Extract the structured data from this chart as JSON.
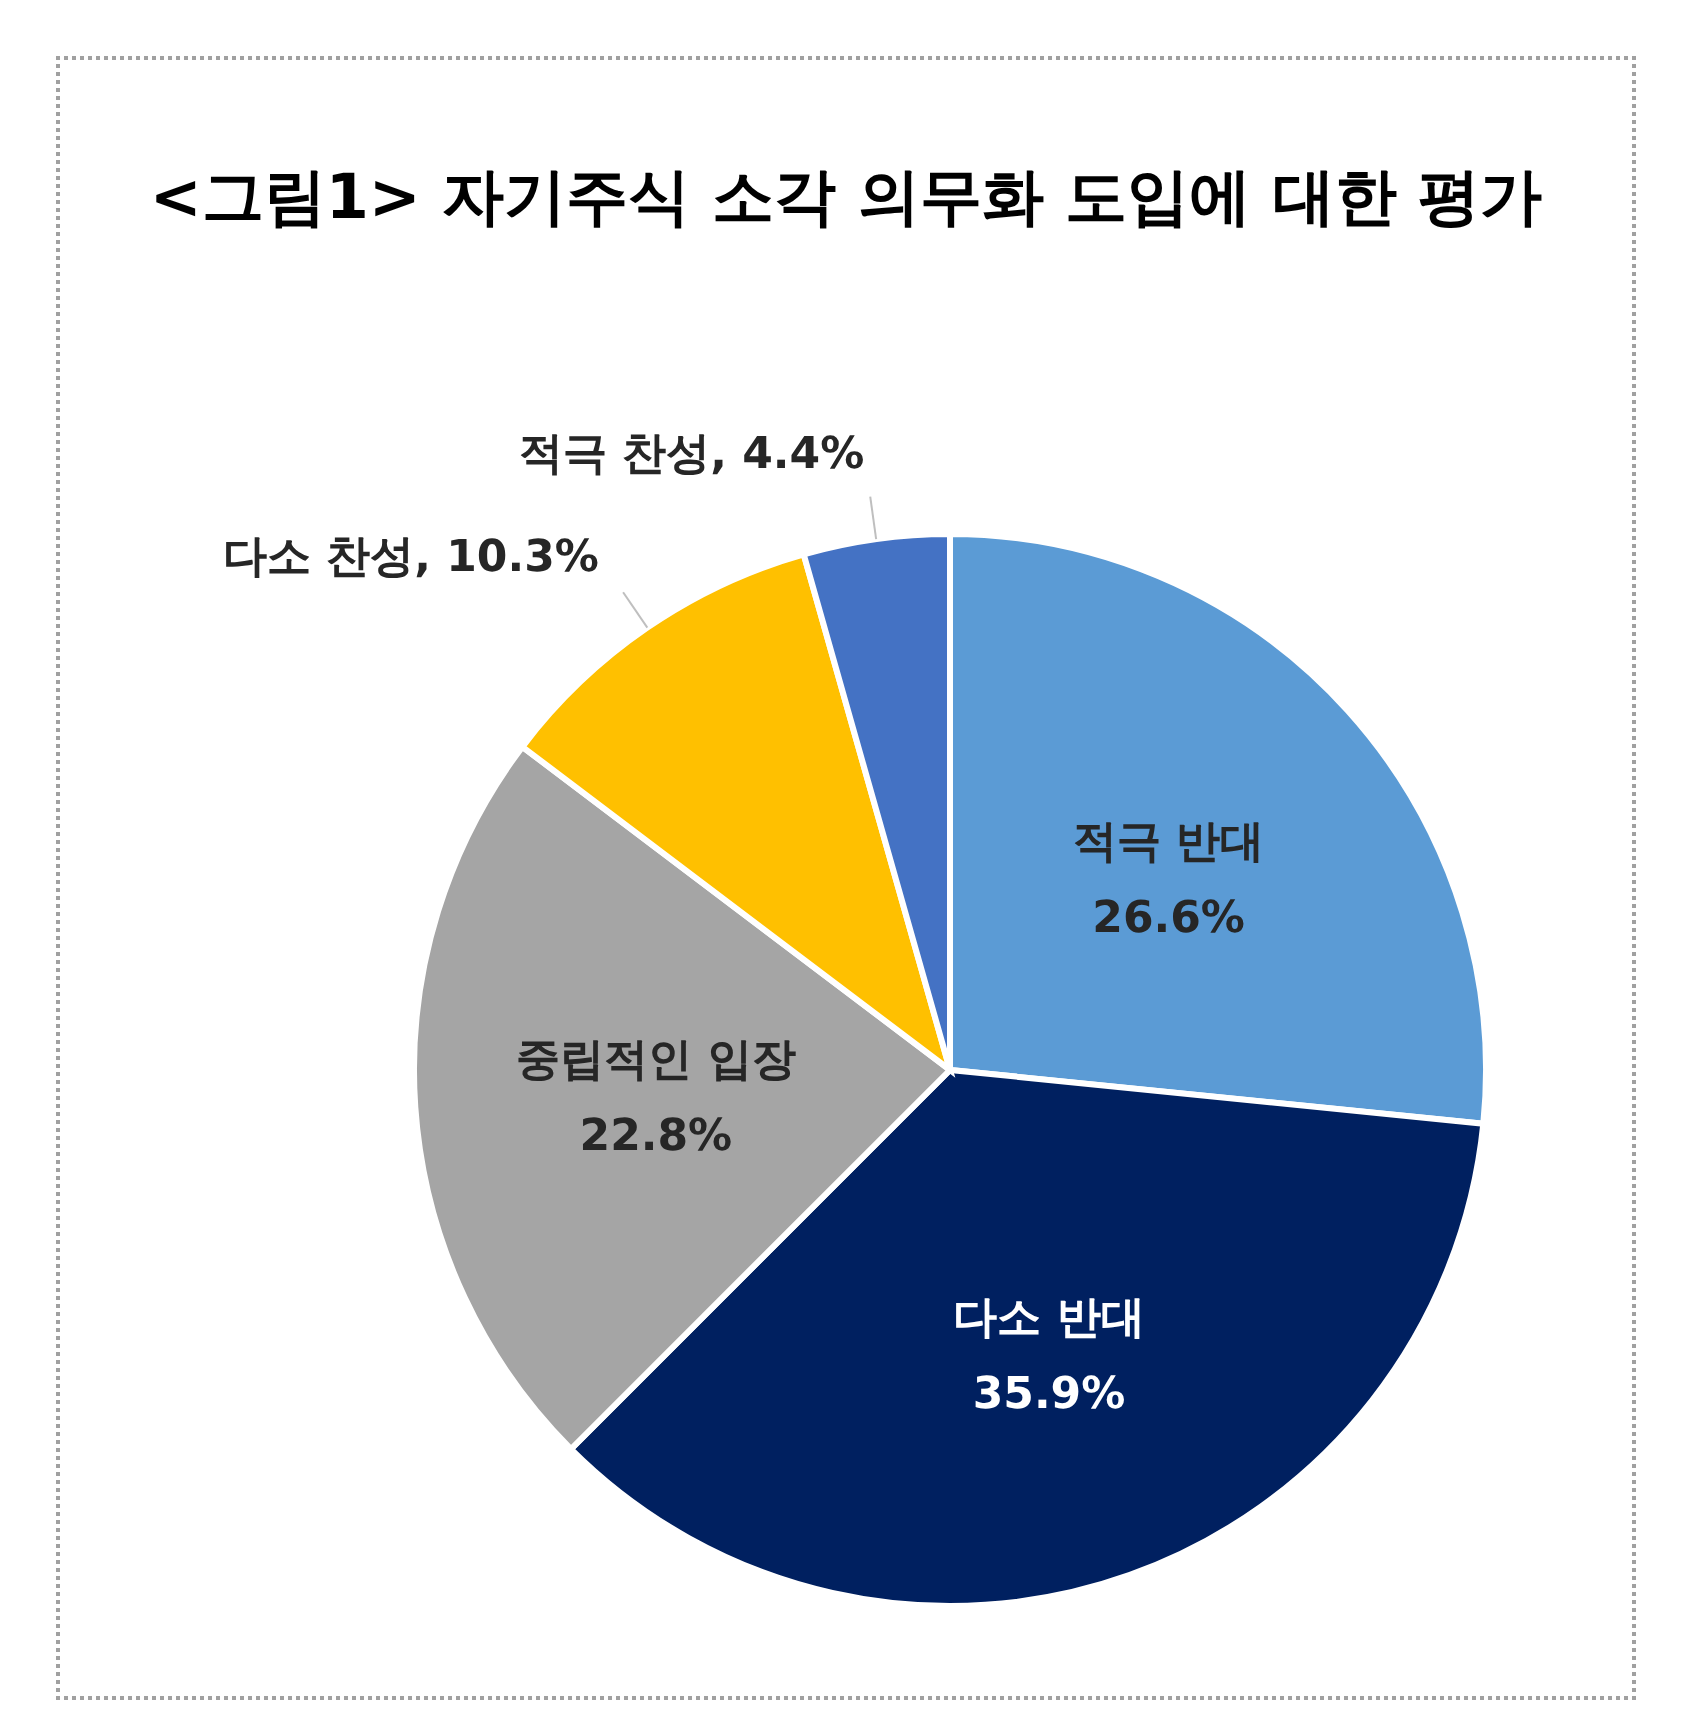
{
  "chart_data": {
    "type": "pie",
    "title": "<그림1> 자기주식 소각 의무화 도입에 대한 평가",
    "categories": [
      "적극 반대",
      "다소 반대",
      "중립적인 입장",
      "다소 찬성",
      "적극 찬성"
    ],
    "values": [
      26.6,
      35.9,
      22.8,
      10.3,
      4.4
    ],
    "value_labels": [
      "26.6%",
      "35.9%",
      "22.8%",
      "10.3%",
      "4.4%"
    ],
    "colors": [
      "#5b9bd5",
      "#002060",
      "#a5a5a5",
      "#ffc000",
      "#4472c4"
    ]
  }
}
